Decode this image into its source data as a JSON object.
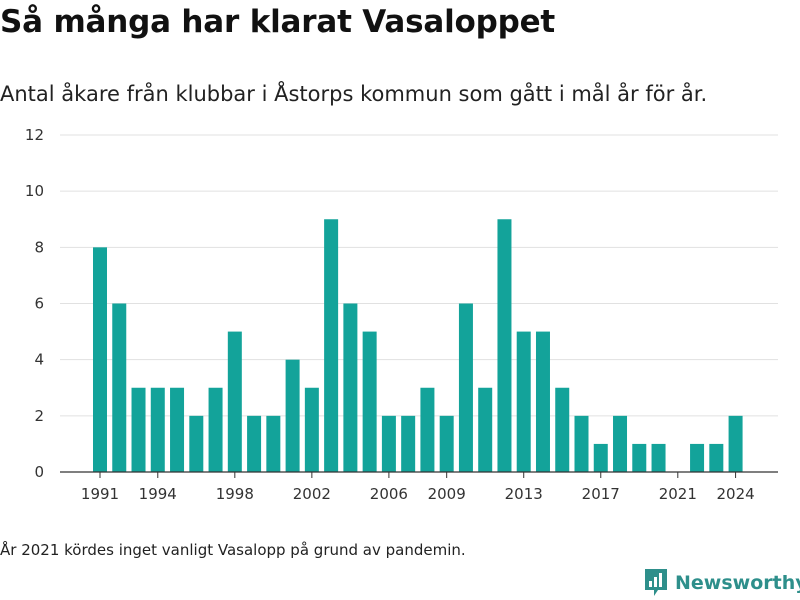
{
  "header": {
    "title": "Så många har klarat Vasaloppet",
    "subtitle": "Antal åkare från klubbar i Åstorps kommun som gått i mål år för år."
  },
  "footer": {
    "note": "År 2021 kördes inget vanligt Vasalopp på grund av pandemin.",
    "brand": "Newsworthy"
  },
  "colors": {
    "bar": "#13a39a",
    "grid": "#e1e1e1",
    "axis": "#333333",
    "brand": "#2e8f8b"
  },
  "chart_data": {
    "type": "bar",
    "title": "Så många har klarat Vasaloppet",
    "subtitle": "Antal åkare från klubbar i Åstorps kommun som gått i mål år för år.",
    "xlabel": "",
    "ylabel": "",
    "categories": [
      1991,
      1992,
      1993,
      1994,
      1995,
      1996,
      1997,
      1998,
      1999,
      2000,
      2001,
      2002,
      2003,
      2004,
      2005,
      2006,
      2007,
      2008,
      2009,
      2010,
      2011,
      2012,
      2013,
      2014,
      2015,
      2016,
      2017,
      2018,
      2019,
      2020,
      2021,
      2022,
      2023,
      2024
    ],
    "values": [
      8,
      6,
      3,
      3,
      3,
      2,
      3,
      5,
      2,
      2,
      4,
      3,
      9,
      6,
      5,
      2,
      2,
      3,
      2,
      6,
      3,
      9,
      5,
      5,
      3,
      2,
      1,
      2,
      1,
      1,
      0,
      1,
      1,
      2
    ],
    "x_tick_labels": [
      "1991",
      "1994",
      "1998",
      "2002",
      "2006",
      "2009",
      "2013",
      "2017",
      "2021",
      "2024"
    ],
    "y_ticks": [
      0,
      2,
      4,
      6,
      8,
      10,
      12
    ],
    "ylim": [
      0,
      12
    ],
    "grid": true,
    "legend": "none"
  }
}
